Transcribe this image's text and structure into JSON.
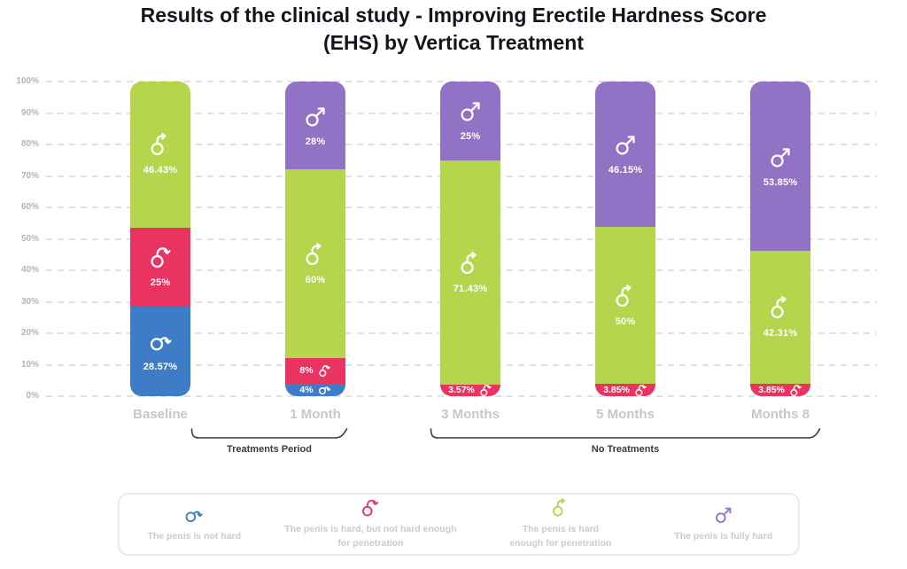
{
  "title": {
    "lines": [
      "Results of the clinical study - Improving Erectile Hardness Score",
      "(EHS) by Vertica Treatment"
    ]
  },
  "chart_data": {
    "type": "stacked-bar",
    "unit": "percent",
    "grid": "dashed",
    "y_axis": {
      "min": 0,
      "max": 100,
      "ticks": [
        "100%",
        "90%",
        "80%",
        "70%",
        "60%",
        "50%",
        "40%",
        "30%",
        "20%",
        "10%",
        "0%"
      ]
    },
    "categories": [
      "Baseline",
      "1 Month",
      "3 Months",
      "5 Months",
      "Months 8"
    ],
    "series_colors": {
      "not_hard": "#3f7cc8",
      "not_hard_enough": "#e93361",
      "hard_enough": "#b4d54c",
      "fully_hard": "#9172c5"
    },
    "bars": [
      {
        "category": "Baseline",
        "segments": [
          {
            "key": "hard_enough",
            "value": 46.43,
            "label": "46.43%"
          },
          {
            "key": "not_hard_enough",
            "value": 25,
            "label": "25%"
          },
          {
            "key": "not_hard",
            "value": 28.57,
            "label": "28.57%"
          }
        ]
      },
      {
        "category": "1 Month",
        "segments": [
          {
            "key": "fully_hard",
            "value": 28,
            "label": "28%"
          },
          {
            "key": "hard_enough",
            "value": 60,
            "label": "60%"
          },
          {
            "key": "not_hard_enough",
            "value": 8,
            "label": "8%",
            "layout": "row"
          },
          {
            "key": "not_hard",
            "value": 4,
            "label": "4%",
            "layout": "row"
          }
        ]
      },
      {
        "category": "3 Months",
        "segments": [
          {
            "key": "fully_hard",
            "value": 25,
            "label": "25%"
          },
          {
            "key": "hard_enough",
            "value": 71.43,
            "label": "71.43%"
          },
          {
            "key": "not_hard_enough",
            "value": 3.57,
            "label": "3.57%",
            "layout": "row"
          }
        ]
      },
      {
        "category": "5 Months",
        "segments": [
          {
            "key": "fully_hard",
            "value": 46.15,
            "label": "46.15%"
          },
          {
            "key": "hard_enough",
            "value": 50,
            "label": "50%"
          },
          {
            "key": "not_hard_enough",
            "value": 3.85,
            "label": "3.85%",
            "layout": "row"
          }
        ]
      },
      {
        "category": "Months 8",
        "segments": [
          {
            "key": "fully_hard",
            "value": 53.85,
            "label": "53.85%"
          },
          {
            "key": "hard_enough",
            "value": 42.31,
            "label": "42.31%"
          },
          {
            "key": "not_hard_enough",
            "value": 3.85,
            "label": "3.85%",
            "layout": "row"
          }
        ]
      }
    ],
    "group_brackets": [
      {
        "label": "Treatments Period",
        "categories": [
          "Baseline",
          "1 Month"
        ]
      },
      {
        "label": "No Treatments",
        "categories": [
          "3 Months",
          "5 Months",
          "Months 8"
        ]
      }
    ],
    "legend": [
      {
        "key": "not_hard",
        "color": "#3f7cc8",
        "lines": [
          "The penis is not hard"
        ]
      },
      {
        "key": "not_hard_enough",
        "color": "#e93361",
        "lines": [
          "The penis is hard, but not hard enough",
          "for penetration"
        ]
      },
      {
        "key": "hard_enough",
        "color": "#b4d54c",
        "lines": [
          "The penis is hard",
          "enough for penetration"
        ]
      },
      {
        "key": "fully_hard",
        "color": "#9172c5",
        "lines": [
          "The penis is fully hard"
        ]
      }
    ]
  }
}
